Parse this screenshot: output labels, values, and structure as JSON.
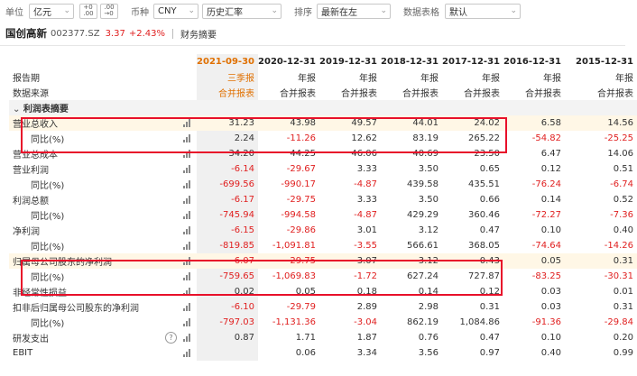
{
  "toolbar": {
    "unit_label": "单位",
    "unit_value": "亿元",
    "currency_label": "币种",
    "currency_value": "CNY",
    "rate_value": "历史汇率",
    "sort_label": "排序",
    "sort_value": "最新在左",
    "format_label": "数据表格",
    "format_value": "默认"
  },
  "company": {
    "name": "国创高新",
    "code": "002377.SZ",
    "price": "3.37",
    "change": "+2.43%",
    "tab": "财务摘要"
  },
  "table": {
    "row_labels": {
      "period": "报告期",
      "source": "数据来源"
    },
    "columns": [
      {
        "date": "2021-09-30",
        "type": "三季报",
        "source": "合并报表",
        "q3": true
      },
      {
        "date": "2020-12-31",
        "type": "年报",
        "source": "合并报表"
      },
      {
        "date": "2019-12-31",
        "type": "年报",
        "source": "合并报表"
      },
      {
        "date": "2018-12-31",
        "type": "年报",
        "source": "合并报表"
      },
      {
        "date": "2017-12-31",
        "type": "年报",
        "source": "合并报表"
      },
      {
        "date": "2016-12-31",
        "type": "年报",
        "source": "合并报表"
      },
      {
        "date": "2015-12-31",
        "type": "年报",
        "source": "合并报表"
      }
    ],
    "section_title": "利润表摘要",
    "rows": [
      {
        "label": "营业总收入",
        "sub": false,
        "hl": true,
        "values": [
          "31.23",
          "43.98",
          "49.57",
          "44.01",
          "24.02",
          "6.58",
          "14.56"
        ]
      },
      {
        "label": "同比(%)",
        "sub": true,
        "hl": false,
        "values": [
          "2.24",
          "-11.26",
          "12.62",
          "83.19",
          "265.22",
          "-54.82",
          "-25.25"
        ]
      },
      {
        "label": "营业总成本",
        "sub": false,
        "hl": false,
        "values": [
          "34.20",
          "44.25",
          "46.06",
          "40.69",
          "23.50",
          "6.47",
          "14.06"
        ]
      },
      {
        "label": "营业利润",
        "sub": false,
        "hl": false,
        "values": [
          "-6.14",
          "-29.67",
          "3.33",
          "3.50",
          "0.65",
          "0.12",
          "0.51"
        ]
      },
      {
        "label": "同比(%)",
        "sub": true,
        "hl": false,
        "values": [
          "-699.56",
          "-990.17",
          "-4.87",
          "439.58",
          "435.51",
          "-76.24",
          "-6.74"
        ]
      },
      {
        "label": "利润总额",
        "sub": false,
        "hl": false,
        "values": [
          "-6.17",
          "-29.75",
          "3.33",
          "3.50",
          "0.66",
          "0.14",
          "0.52"
        ]
      },
      {
        "label": "同比(%)",
        "sub": true,
        "hl": false,
        "values": [
          "-745.94",
          "-994.58",
          "-4.87",
          "429.29",
          "360.46",
          "-72.27",
          "-7.36"
        ]
      },
      {
        "label": "净利润",
        "sub": false,
        "hl": false,
        "values": [
          "-6.15",
          "-29.86",
          "3.01",
          "3.12",
          "0.47",
          "0.10",
          "0.40"
        ]
      },
      {
        "label": "同比(%)",
        "sub": true,
        "hl": false,
        "values": [
          "-819.85",
          "-1,091.81",
          "-3.55",
          "566.61",
          "368.05",
          "-74.64",
          "-14.26"
        ]
      },
      {
        "label": "归属母公司股东的净利润",
        "sub": false,
        "hl": true,
        "values": [
          "-6.07",
          "-29.75",
          "3.07",
          "3.12",
          "0.43",
          "0.05",
          "0.31"
        ]
      },
      {
        "label": "同比(%)",
        "sub": true,
        "hl": false,
        "values": [
          "-759.65",
          "-1,069.83",
          "-1.72",
          "627.24",
          "727.87",
          "-83.25",
          "-30.31"
        ]
      },
      {
        "label": "非经常性损益",
        "sub": false,
        "hl": false,
        "values": [
          "0.02",
          "0.05",
          "0.18",
          "0.14",
          "0.12",
          "0.03",
          "0.01"
        ]
      },
      {
        "label": "扣非后归属母公司股东的净利润",
        "sub": false,
        "hl": false,
        "values": [
          "-6.10",
          "-29.79",
          "2.89",
          "2.98",
          "0.31",
          "0.03",
          "0.31"
        ]
      },
      {
        "label": "同比(%)",
        "sub": true,
        "hl": false,
        "values": [
          "-797.03",
          "-1,131.36",
          "-3.04",
          "862.19",
          "1,084.86",
          "-91.36",
          "-29.84"
        ]
      },
      {
        "label": "研发支出",
        "sub": false,
        "hl": false,
        "help": true,
        "values": [
          "0.87",
          "1.71",
          "1.87",
          "0.76",
          "0.47",
          "0.10",
          "0.20"
        ]
      },
      {
        "label": "EBIT",
        "sub": false,
        "hl": false,
        "values": [
          "",
          "0.06",
          "3.34",
          "3.56",
          "0.97",
          "0.40",
          "0.99"
        ]
      }
    ]
  },
  "colors": {
    "negative": "#e02020",
    "highlight_box": "#e8102a",
    "q3_header": "#e07000"
  }
}
